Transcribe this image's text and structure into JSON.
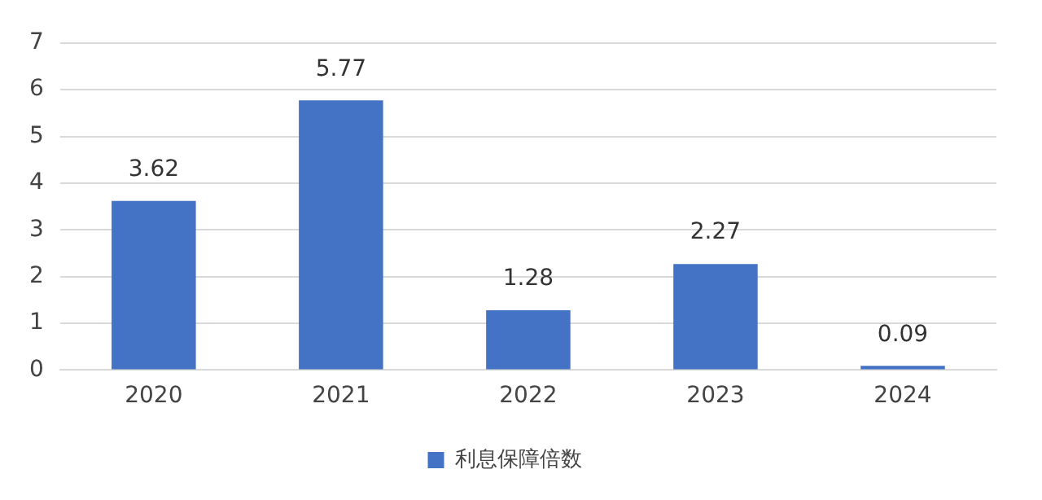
{
  "chart_data": {
    "type": "bar",
    "categories": [
      "2020",
      "2021",
      "2022",
      "2023",
      "2024"
    ],
    "series": [
      {
        "name": "利息保障倍数",
        "color": "#4472c4",
        "values": [
          3.62,
          5.77,
          1.28,
          2.27,
          0.09
        ]
      }
    ],
    "ylim": [
      0,
      7
    ],
    "yticks": [
      0,
      1,
      2,
      3,
      4,
      5,
      6,
      7
    ],
    "grid": "y",
    "legend": "bottom",
    "data_labels": true
  }
}
